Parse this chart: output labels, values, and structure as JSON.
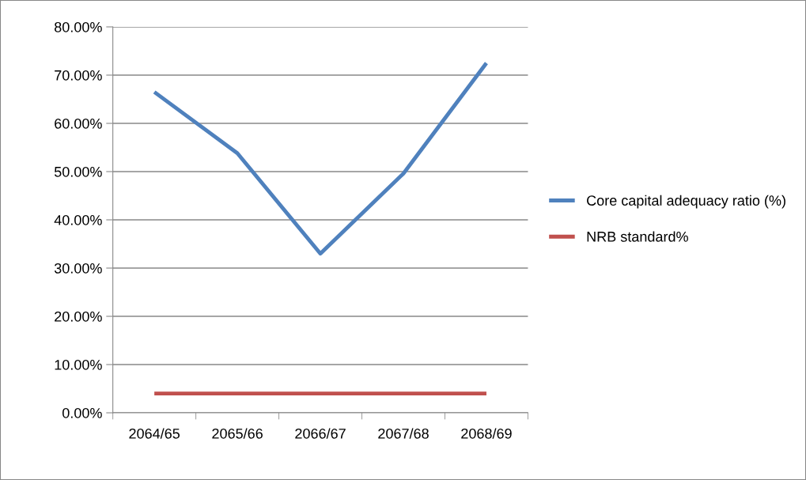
{
  "chart_data": {
    "type": "line",
    "categories": [
      "2064/65",
      "2065/66",
      "2066/67",
      "2067/68",
      "2068/69"
    ],
    "series": [
      {
        "name": "Core capital adequacy ratio (%)",
        "color": "#4f81bd",
        "values": [
          66.5,
          53.8,
          33.0,
          49.6,
          72.5
        ]
      },
      {
        "name": "NRB standard%",
        "color": "#c0504d",
        "values": [
          4,
          4,
          4,
          4,
          4
        ]
      }
    ],
    "ylim": [
      0,
      80
    ],
    "yticks": [
      {
        "value": 0,
        "label": "0.00%"
      },
      {
        "value": 10,
        "label": "10.00%"
      },
      {
        "value": 20,
        "label": "20.00%"
      },
      {
        "value": 30,
        "label": "30.00%"
      },
      {
        "value": 40,
        "label": "40.00%"
      },
      {
        "value": 50,
        "label": "50.00%"
      },
      {
        "value": 60,
        "label": "60.00%"
      },
      {
        "value": 70,
        "label": "70.00%"
      },
      {
        "value": 80,
        "label": "80.00%"
      }
    ],
    "grid": "y",
    "legend": "right",
    "marker": "none",
    "line_style": "solid"
  }
}
